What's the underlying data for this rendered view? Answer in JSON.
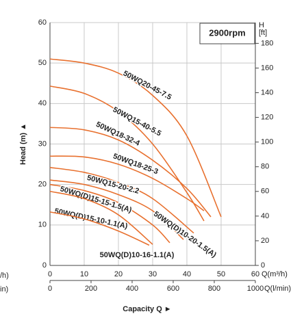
{
  "chart_data": {
    "type": "line",
    "rpm_label": "2900rpm",
    "y_label": "Head (m) ▲",
    "x_label": "Capacity Q ►",
    "x_unit_label": "Q(m³/h)",
    "x2_unit_label": "Q(l/min)",
    "y2_unit_label": "H",
    "y2_unit_sublabel": "[ft]",
    "cropped_labels": [
      "/h)",
      "in)"
    ],
    "xlim": [
      0,
      60
    ],
    "xticks": [
      0,
      10,
      20,
      30,
      40,
      50,
      60
    ],
    "x2lim": [
      0,
      1000
    ],
    "x2ticks": [
      0,
      200,
      400,
      600,
      800,
      1000
    ],
    "ylim": [
      0,
      60
    ],
    "yticks": [
      0,
      10,
      20,
      30,
      40,
      50,
      60
    ],
    "y2lim": [
      0,
      196.85
    ],
    "y2ticks": [
      0,
      20,
      40,
      60,
      80,
      100,
      120,
      140,
      160,
      180
    ],
    "grid": true,
    "color": "#e8702e",
    "series": [
      {
        "name": "50WQ20-45-7.5",
        "x": [
          0,
          10,
          20,
          30,
          40,
          50
        ],
        "values": [
          51,
          50,
          47.5,
          42,
          32,
          12
        ]
      },
      {
        "name": "50WQ15-40-5.5",
        "x": [
          0,
          10,
          20,
          30,
          40,
          45
        ],
        "values": [
          44.3,
          42.5,
          38,
          30,
          18,
          11
        ]
      },
      {
        "name": "50WQ18-32-4",
        "x": [
          0,
          10,
          20,
          30,
          40,
          47
        ],
        "values": [
          34.1,
          33.5,
          31,
          26,
          19,
          12
        ]
      },
      {
        "name": "50WQ18-25-3",
        "x": [
          0,
          10,
          20,
          30,
          40,
          45
        ],
        "values": [
          27,
          26.8,
          25,
          21.5,
          16.5,
          13.5
        ]
      },
      {
        "name": "50WQ15-20-2.2",
        "x": [
          0,
          10,
          20,
          30,
          42
        ],
        "values": [
          24.2,
          23,
          20.5,
          16.5,
          8
        ]
      },
      {
        "name": "50WQ(D)10-20-1.5(A)",
        "x": [
          0,
          10,
          20,
          30,
          39
        ],
        "values": [
          21.1,
          20,
          17.5,
          13.5,
          6.4
        ]
      },
      {
        "name": "50WQ(D)15-15-1.5(A)",
        "x": [
          0,
          10,
          20,
          30,
          35
        ],
        "values": [
          20,
          18.5,
          15.5,
          10,
          5.6
        ]
      },
      {
        "name": "50WQ(D)15-10-1.1(A)",
        "x": [
          0,
          10,
          20,
          30
        ],
        "values": [
          18.3,
          16.5,
          12.5,
          5.2
        ]
      },
      {
        "name": "50WQ(D)10-16-1.1(A)",
        "x": [
          0,
          10,
          20,
          29
        ],
        "values": [
          13.2,
          11.5,
          8.5,
          5
        ]
      }
    ]
  }
}
